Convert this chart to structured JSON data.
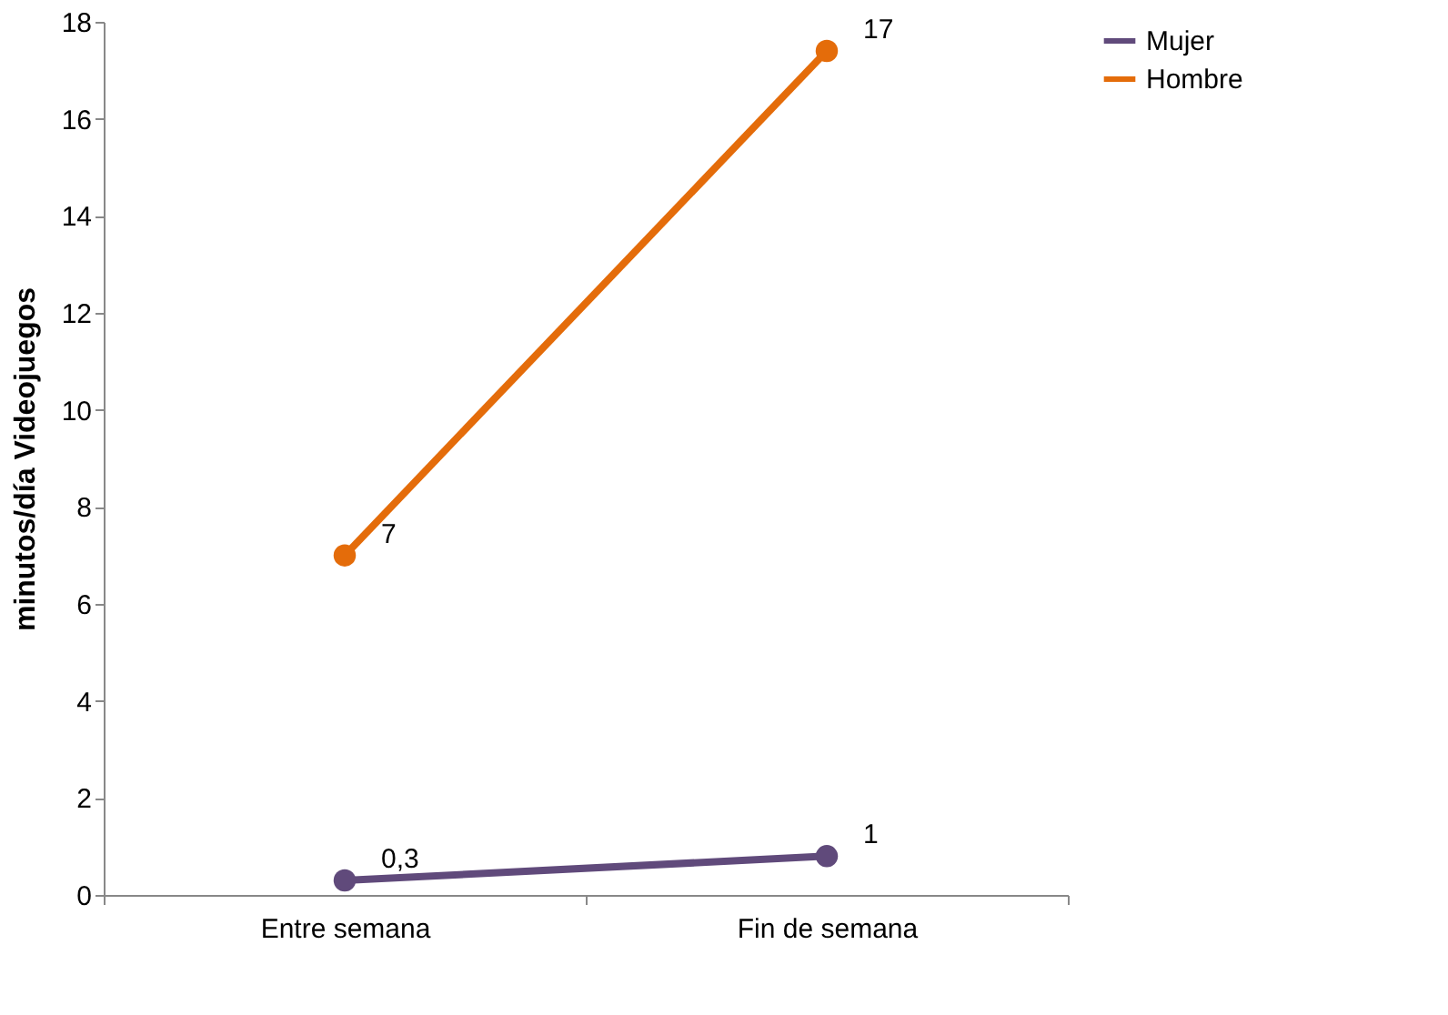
{
  "chart_data": {
    "type": "line",
    "ylabel": "minutos/día Videojuegos",
    "categories": [
      "Entre semana",
      "Fin de semana"
    ],
    "series": [
      {
        "name": "Mujer",
        "color": "#604a7b",
        "values": [
          0.3,
          0.8
        ],
        "value_labels": [
          "0,3",
          "1"
        ]
      },
      {
        "name": "Hombre",
        "color": "#e46c0a",
        "values": [
          7,
          17.4
        ],
        "value_labels": [
          "7",
          "17"
        ]
      }
    ],
    "ylim": [
      0,
      18
    ],
    "yticks": [
      0,
      2,
      4,
      6,
      8,
      10,
      12,
      14,
      16,
      18
    ],
    "grid": false,
    "legend": "right",
    "marker": "circle"
  }
}
